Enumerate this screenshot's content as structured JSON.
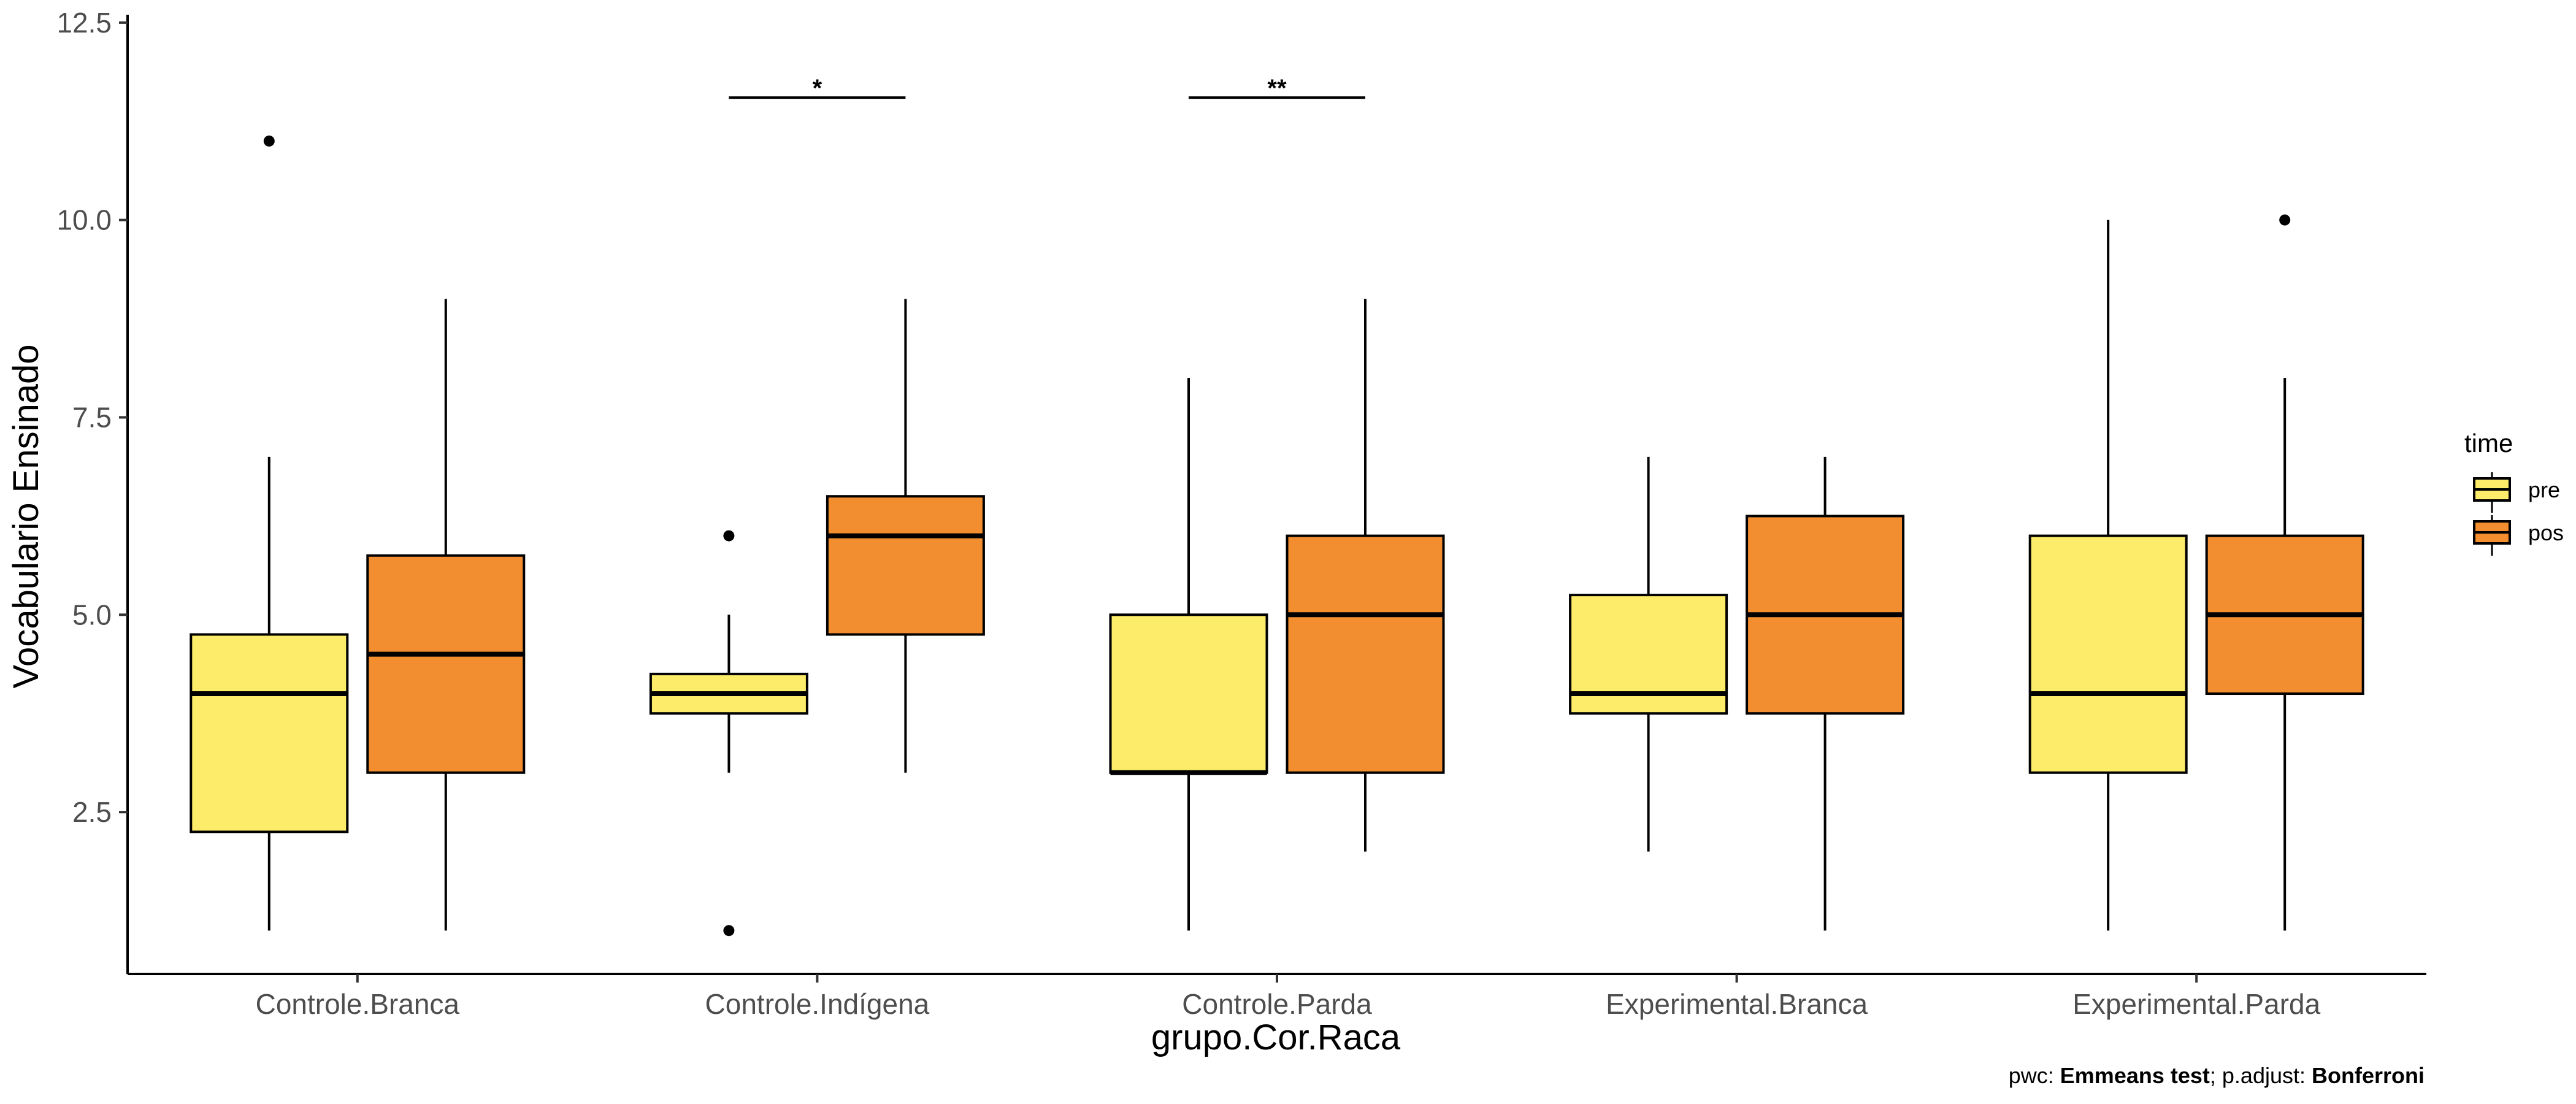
{
  "chart_data": {
    "type": "box",
    "xlabel": "grupo.Cor.Raca",
    "ylabel": "Vocabulario Ensinado",
    "ylim": [
      0.45,
      12.6
    ],
    "yticks": [
      2.5,
      5.0,
      7.5,
      10.0,
      12.5
    ],
    "ytick_labels": [
      "2.5",
      "5.0",
      "7.5",
      "10.0",
      "12.5"
    ],
    "grid": false,
    "categories": [
      "Controle.Branca",
      "Controle.Indígena",
      "Controle.Parda",
      "Experimental.Branca",
      "Experimental.Parda"
    ],
    "legend": {
      "title": "time",
      "position": "right",
      "entries": [
        {
          "label": "pre",
          "color": "#FDEC6A"
        },
        {
          "label": "pos",
          "color": "#F28E2F"
        }
      ]
    },
    "series": [
      {
        "name": "pre",
        "color": "#FDEC6A",
        "boxes": [
          {
            "category": "Controle.Branca",
            "whisker_low": 1,
            "q1": 2.25,
            "median": 4,
            "q3": 4.75,
            "whisker_high": 7,
            "outliers": [
              11
            ]
          },
          {
            "category": "Controle.Indígena",
            "whisker_low": 3,
            "q1": 3.75,
            "median": 4,
            "q3": 4.25,
            "whisker_high": 5,
            "outliers": [
              6,
              1
            ]
          },
          {
            "category": "Controle.Parda",
            "whisker_low": 1,
            "q1": 3,
            "median": 3,
            "q3": 5,
            "whisker_high": 8,
            "outliers": []
          },
          {
            "category": "Experimental.Branca",
            "whisker_low": 2,
            "q1": 3.75,
            "median": 4,
            "q3": 5.25,
            "whisker_high": 7,
            "outliers": []
          },
          {
            "category": "Experimental.Parda",
            "whisker_low": 1,
            "q1": 3,
            "median": 4,
            "q3": 6,
            "whisker_high": 10,
            "outliers": []
          }
        ]
      },
      {
        "name": "pos",
        "color": "#F28E2F",
        "boxes": [
          {
            "category": "Controle.Branca",
            "whisker_low": 1,
            "q1": 3,
            "median": 4.5,
            "q3": 5.75,
            "whisker_high": 9,
            "outliers": []
          },
          {
            "category": "Controle.Indígena",
            "whisker_low": 3,
            "q1": 4.75,
            "median": 6,
            "q3": 6.5,
            "whisker_high": 9,
            "outliers": []
          },
          {
            "category": "Controle.Parda",
            "whisker_low": 2,
            "q1": 3,
            "median": 5,
            "q3": 6,
            "whisker_high": 9,
            "outliers": []
          },
          {
            "category": "Experimental.Branca",
            "whisker_low": 1,
            "q1": 3.75,
            "median": 5,
            "q3": 6.25,
            "whisker_high": 7,
            "outliers": []
          },
          {
            "category": "Experimental.Parda",
            "whisker_low": 1,
            "q1": 4,
            "median": 5,
            "q3": 6,
            "whisker_high": 8,
            "outliers": [
              10
            ]
          }
        ]
      }
    ],
    "significance": [
      {
        "category": "Controle.Indígena",
        "label": "*",
        "y": 11.55
      },
      {
        "category": "Controle.Parda",
        "label": "**",
        "y": 11.55
      }
    ]
  },
  "caption": {
    "prefix": "pwc: ",
    "test": "Emmeans test",
    "middle": "; p.adjust: ",
    "method": "Bonferroni"
  }
}
